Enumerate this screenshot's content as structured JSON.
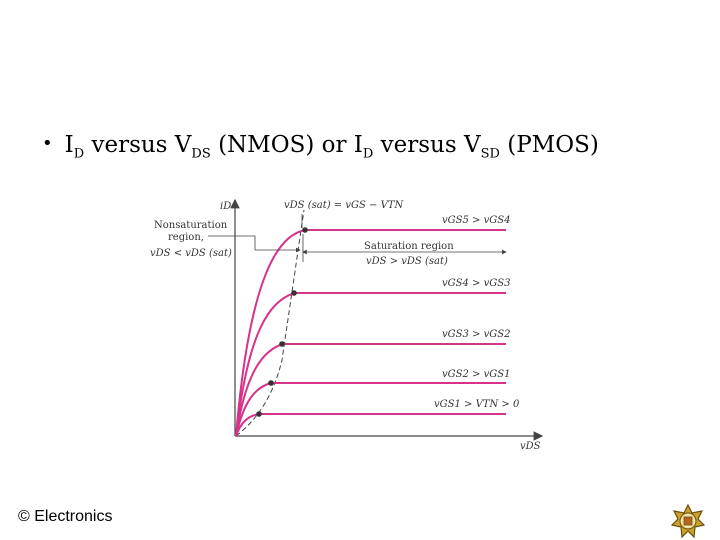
{
  "slide": {
    "bullet": {
      "i_main_1": "I",
      "i_sub_1": "D",
      "versus_1": " versus V",
      "v_sub_1": "DS",
      "mid": " (NMOS) or I",
      "i_sub_2": "D",
      "versus_2": " versus V",
      "v_sub_2": "SD",
      "end": " (PMOS)"
    },
    "footer": "© Electronics"
  },
  "diagram": {
    "y_axis_label": "iD",
    "x_axis_label": "vDS",
    "vds_sat_label": "vDS (sat) = vGS − VTN",
    "nonsat_label": [
      "Nonsaturation",
      "region,",
      "vDS < vDS (sat)"
    ],
    "sat_label": [
      "Saturation region",
      "vDS > vDS (sat)"
    ],
    "curves": [
      {
        "label": "vGS5 > vGS4",
        "level": 5
      },
      {
        "label": "vGS4 > vGS3",
        "level": 4
      },
      {
        "label": "vGS3 > vGS2",
        "level": 3
      },
      {
        "label": "vGS2 > vGS1",
        "level": 2
      },
      {
        "label": "vGS1 > VTN > 0",
        "level": 1
      }
    ],
    "curve_color": "#d6338b"
  }
}
